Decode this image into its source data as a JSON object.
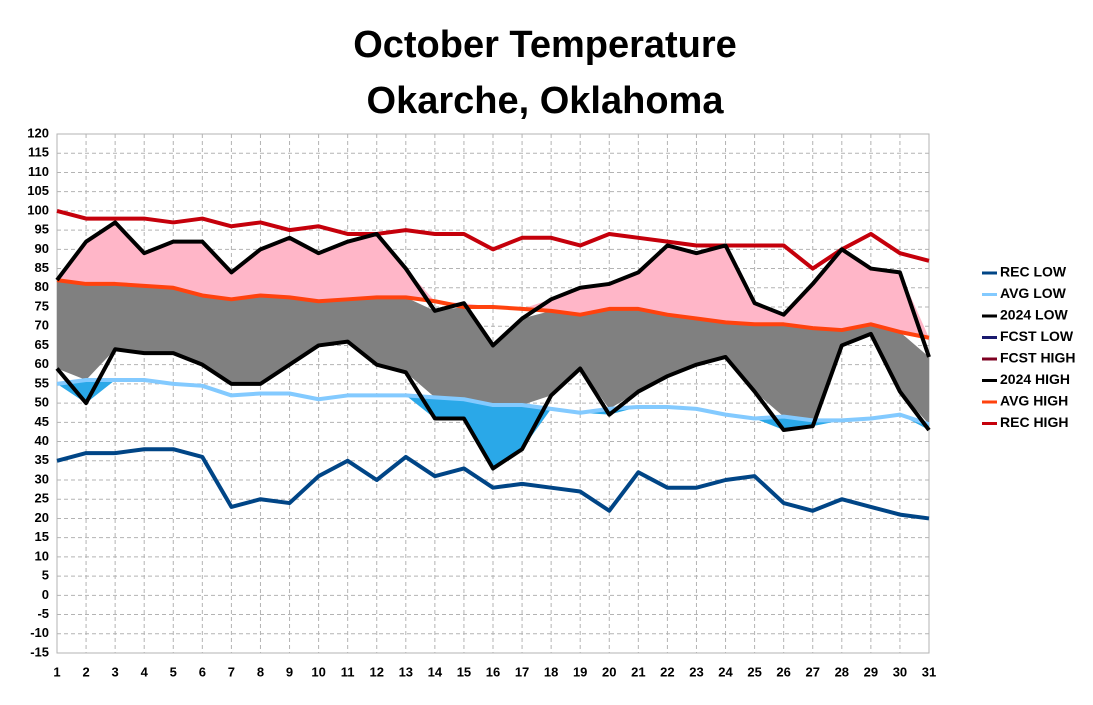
{
  "chart_data": {
    "type": "line",
    "title": "October Temperature",
    "subtitle": "Okarche, Oklahoma",
    "categories": [
      "1",
      "2",
      "3",
      "4",
      "5",
      "6",
      "7",
      "8",
      "9",
      "10",
      "11",
      "12",
      "13",
      "14",
      "15",
      "16",
      "17",
      "18",
      "19",
      "20",
      "21",
      "22",
      "23",
      "24",
      "25",
      "26",
      "27",
      "28",
      "29",
      "30",
      "31"
    ],
    "ylim": [
      -15,
      120
    ],
    "yticks": [
      -15,
      -10,
      -5,
      0,
      5,
      10,
      15,
      20,
      25,
      30,
      35,
      40,
      45,
      50,
      55,
      60,
      65,
      70,
      75,
      80,
      85,
      90,
      95,
      100,
      105,
      110,
      115,
      120
    ],
    "grid": true,
    "legend": "right",
    "series": [
      {
        "name": "REC LOW",
        "color": "#004586",
        "values": [
          35,
          37,
          37,
          38,
          38,
          36,
          23,
          25,
          24,
          31,
          35,
          30,
          36,
          31,
          33,
          28,
          29,
          28,
          27,
          22,
          32,
          28,
          28,
          30,
          31,
          24,
          22,
          25,
          23,
          21,
          20
        ]
      },
      {
        "name": "AVG LOW",
        "color": "#83caff",
        "values": [
          55,
          56,
          56,
          56,
          55,
          54.5,
          52,
          52.5,
          52.5,
          51,
          52,
          52,
          52,
          51.5,
          51,
          49.5,
          49.5,
          48.5,
          47.5,
          48.5,
          49,
          49,
          48.5,
          47,
          46,
          46.5,
          45.5,
          45.5,
          46,
          47,
          44.5
        ]
      },
      {
        "name": "2024 LOW",
        "color": "#000000",
        "values": [
          59,
          50,
          64,
          63,
          63,
          60,
          55,
          55,
          60,
          65,
          66,
          60,
          58,
          46,
          46,
          33,
          38,
          52,
          59,
          47,
          53,
          57,
          60,
          62,
          53,
          43,
          44,
          65,
          68,
          53,
          43
        ]
      },
      {
        "name": "FCST LOW",
        "color": "#1a1a6e",
        "values": [
          null,
          null,
          null,
          null,
          null,
          null,
          null,
          null,
          null,
          null,
          null,
          null,
          null,
          null,
          null,
          null,
          null,
          null,
          null,
          null,
          null,
          null,
          null,
          null,
          null,
          null,
          null,
          null,
          null,
          null,
          null
        ]
      },
      {
        "name": "FCST HIGH",
        "color": "#7e0021",
        "values": [
          null,
          null,
          null,
          null,
          null,
          null,
          null,
          null,
          null,
          null,
          null,
          null,
          null,
          null,
          null,
          null,
          null,
          null,
          null,
          null,
          null,
          null,
          null,
          null,
          null,
          null,
          null,
          null,
          null,
          null,
          null
        ]
      },
      {
        "name": "2024 HIGH",
        "color": "#000000",
        "values": [
          82,
          92,
          97,
          89,
          92,
          92,
          84,
          90,
          93,
          89,
          92,
          94,
          85,
          74,
          76,
          65,
          72,
          77,
          80,
          81,
          84,
          91,
          89,
          91,
          76,
          73,
          81,
          90,
          85,
          84,
          62
        ]
      },
      {
        "name": "AVG HIGH",
        "color": "#ff420e",
        "values": [
          82,
          81,
          81,
          80.5,
          80,
          78,
          77,
          78,
          77.5,
          76.5,
          77,
          77.5,
          77.5,
          76.5,
          75,
          75,
          74.5,
          74,
          73,
          74.5,
          74.5,
          73,
          72,
          71,
          70.5,
          70.5,
          69.5,
          69,
          70.5,
          68.5,
          67
        ]
      },
      {
        "name": "REC HIGH",
        "color": "#c5000b",
        "values": [
          100,
          98,
          98,
          98,
          97,
          98,
          96,
          97,
          95,
          96,
          94,
          94,
          95,
          94,
          94,
          90,
          93,
          93,
          91,
          94,
          93,
          92,
          91,
          91,
          91,
          91,
          85,
          90,
          94,
          89,
          87
        ]
      }
    ],
    "fill_colors": {
      "above_avg_high": "#ffb6c8",
      "normal": "#808080",
      "below_avg_low": "#2aa8e8"
    }
  }
}
